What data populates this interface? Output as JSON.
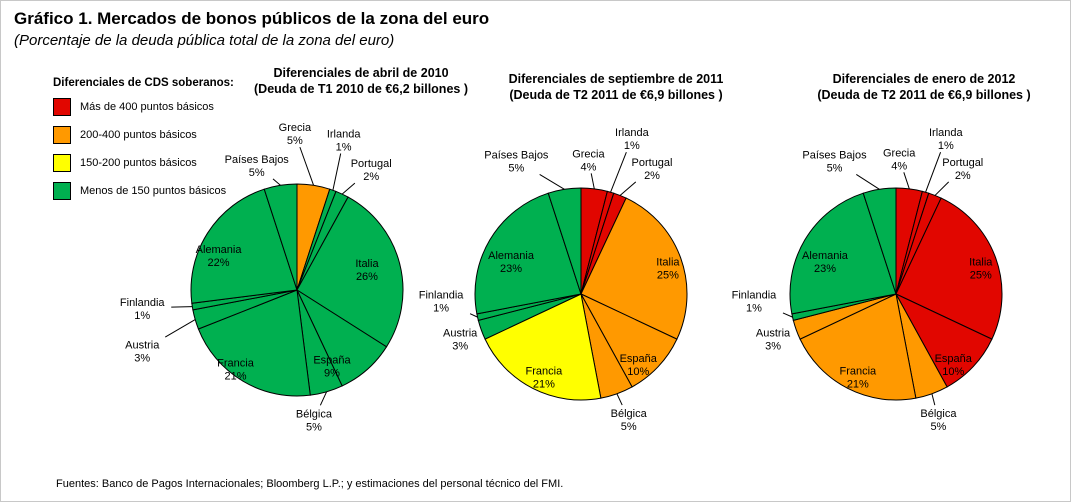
{
  "page": {
    "title": "Gráfico 1. Mercados de bonos públicos de la zona del euro",
    "subtitle": "(Porcentaje de la deuda pública total de la zona del euro)",
    "source": "Fuentes: Banco de Pagos Internacionales; Bloomberg L.P.; y estimaciones del personal técnico del FMI."
  },
  "legend": {
    "heading": "Diferenciales de CDS soberanos:",
    "items": [
      {
        "label": "Más de 400 puntos básicos",
        "bucket": "mas_400",
        "color": "#e10600"
      },
      {
        "label": "200-400 puntos básicos",
        "bucket": "200_400",
        "color": "#ff9900"
      },
      {
        "label": "150-200 puntos básicos",
        "bucket": "150_200",
        "color": "#ffff00"
      },
      {
        "label": "Menos de 150 puntos básicos",
        "bucket": "menos_150",
        "color": "#00b050"
      }
    ]
  },
  "chart_data": [
    {
      "type": "pie",
      "title": "Diferenciales de abril de 2010",
      "subtitle": "(Deuda de T1 2010 de €6,2 billones )",
      "units": "percent of total euro area public debt",
      "start_angle_deg": 0,
      "direction": "clockwise",
      "categories": [
        "Grecia",
        "Irlanda",
        "Portugal",
        "Italia",
        "España",
        "Bélgica",
        "Francia",
        "Austria",
        "Finlandia",
        "Alemania",
        "Países Bajos"
      ],
      "values": [
        5,
        1,
        2,
        26,
        9,
        5,
        21,
        3,
        1,
        22,
        5
      ],
      "slice_buckets": [
        "200_400",
        "menos_150",
        "menos_150",
        "menos_150",
        "menos_150",
        "menos_150",
        "menos_150",
        "menos_150",
        "menos_150",
        "menos_150",
        "menos_150"
      ]
    },
    {
      "type": "pie",
      "title": "Diferenciales de septiembre de 2011",
      "subtitle": "(Deuda de T2 2011 de €6,9 billones )",
      "units": "percent of total euro area public debt",
      "start_angle_deg": 0,
      "direction": "clockwise",
      "categories": [
        "Grecia",
        "Irlanda",
        "Portugal",
        "Italia",
        "España",
        "Bélgica",
        "Francia",
        "Austria",
        "Finlandia",
        "Alemania",
        "Países Bajos"
      ],
      "values": [
        4,
        1,
        2,
        25,
        10,
        5,
        21,
        3,
        1,
        23,
        5
      ],
      "slice_buckets": [
        "mas_400",
        "mas_400",
        "mas_400",
        "200_400",
        "200_400",
        "200_400",
        "150_200",
        "menos_150",
        "menos_150",
        "menos_150",
        "menos_150"
      ]
    },
    {
      "type": "pie",
      "title": "Diferenciales de enero de 2012",
      "subtitle": "(Deuda de T2 2011 de €6,9 billones )",
      "units": "percent of total euro area public debt",
      "start_angle_deg": 0,
      "direction": "clockwise",
      "categories": [
        "Grecia",
        "Irlanda",
        "Portugal",
        "Italia",
        "España",
        "Bélgica",
        "Francia",
        "Austria",
        "Finlandia",
        "Alemania",
        "Países Bajos"
      ],
      "values": [
        4,
        1,
        2,
        25,
        10,
        5,
        21,
        3,
        1,
        23,
        5
      ],
      "slice_buckets": [
        "mas_400",
        "mas_400",
        "mas_400",
        "mas_400",
        "mas_400",
        "200_400",
        "200_400",
        "200_400",
        "menos_150",
        "menos_150",
        "menos_150"
      ]
    }
  ]
}
